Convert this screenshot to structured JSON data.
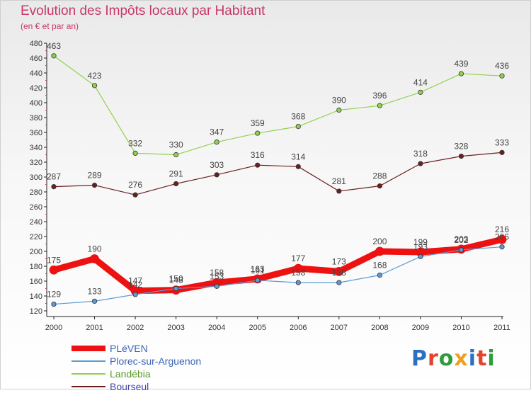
{
  "header": {
    "title": "Evolution des Impôts locaux par Habitant",
    "subtitle": "(en € et par an)"
  },
  "brand": {
    "text": "Proxiti",
    "letter_colors": [
      "#2b6fc2",
      "#e0442c",
      "#2e9c3a",
      "#f0a020",
      "#2b6fc2",
      "#e0442c",
      "#2e9c3a"
    ]
  },
  "chart_data": {
    "type": "line",
    "title": "Evolution des Impôts locaux par Habitant",
    "subtitle": "(en € et par an)",
    "xlabel": "",
    "ylabel": "",
    "categories": [
      "2000",
      "2001",
      "2002",
      "2003",
      "2004",
      "2005",
      "2006",
      "2007",
      "2008",
      "2009",
      "2010",
      "2011"
    ],
    "ylim": [
      120,
      480
    ],
    "yticks": [
      120,
      140,
      160,
      180,
      200,
      220,
      240,
      260,
      280,
      300,
      320,
      340,
      360,
      380,
      400,
      420,
      440,
      460,
      480
    ],
    "grid": false,
    "legend_position": "bottom-left",
    "series": [
      {
        "name": "PLéVEN",
        "color": "#ee1111",
        "values": [
          175,
          190,
          147,
          148,
          158,
          163,
          177,
          173,
          200,
          199,
          203,
          216
        ]
      },
      {
        "name": "Plorec-sur-Arguenon",
        "color": "#5b9bd5",
        "values": [
          129,
          133,
          142,
          150,
          153,
          161,
          158,
          158,
          168,
          193,
          202,
          206
        ]
      },
      {
        "name": "Landébia",
        "color": "#92d050",
        "values": [
          463,
          423,
          332,
          330,
          347,
          359,
          368,
          390,
          396,
          414,
          439,
          436
        ]
      },
      {
        "name": "Bourseul",
        "color": "#6b1f1f",
        "values": [
          287,
          289,
          276,
          291,
          303,
          316,
          314,
          281,
          288,
          318,
          328,
          333
        ]
      }
    ]
  }
}
